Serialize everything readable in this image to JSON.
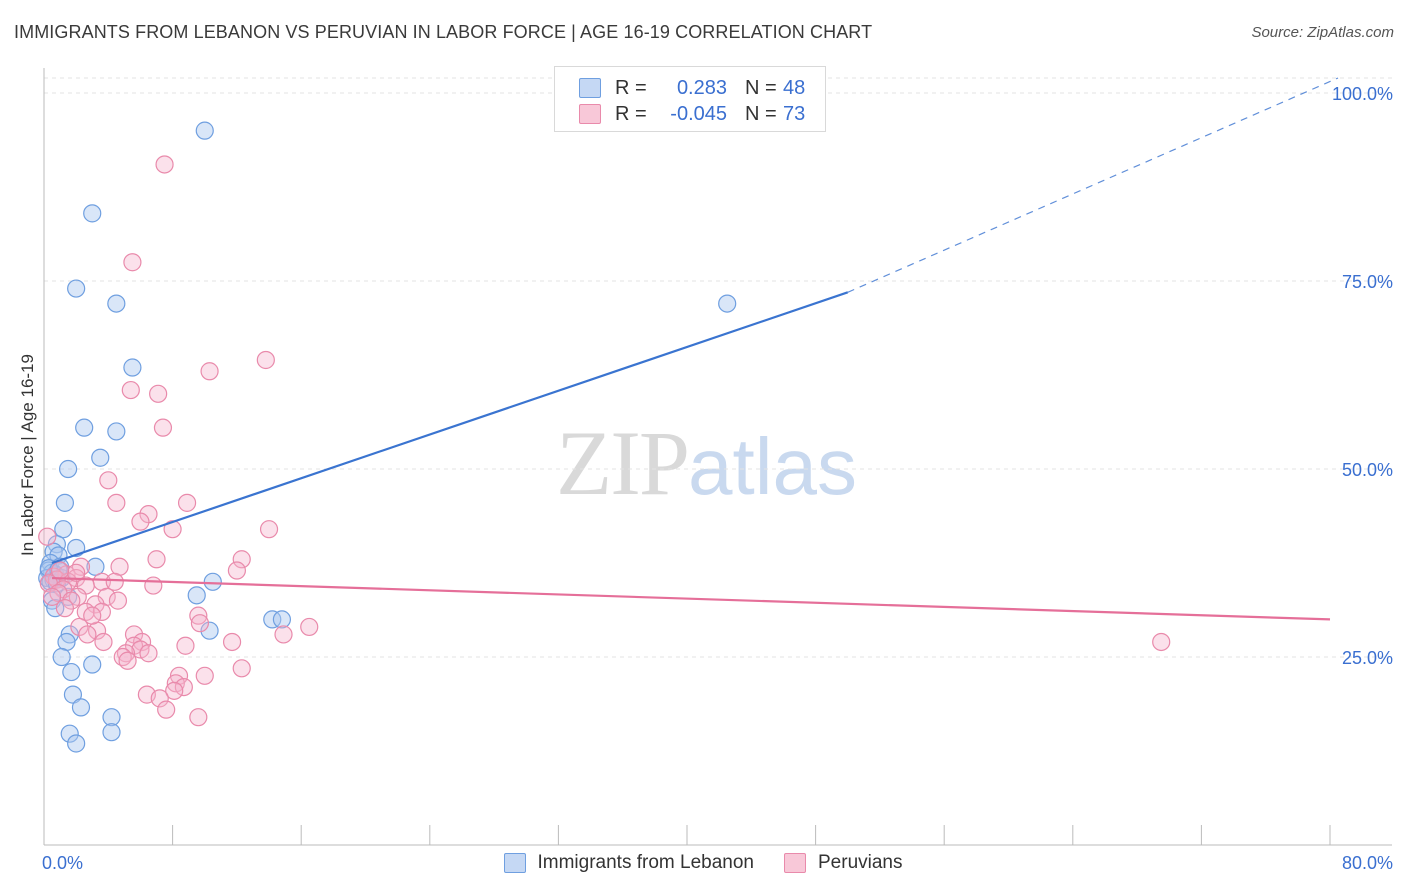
{
  "header": {
    "title": "IMMIGRANTS FROM LEBANON VS PERUVIAN IN LABOR FORCE | AGE 16-19 CORRELATION CHART",
    "source": "Source: ZipAtlas.com"
  },
  "watermark": {
    "zip": "ZIP",
    "atlas": "atlas"
  },
  "legend": {
    "rows": [
      {
        "r_label": "R =",
        "r_value": "0.283",
        "n_label": "N =",
        "n_value": "48",
        "color": "#6f9fe0",
        "fill": "#c5d8f4"
      },
      {
        "r_label": "R =",
        "r_value": "-0.045",
        "n_label": "N =",
        "n_value": "73",
        "color": "#e98aab",
        "fill": "#f8c8d8"
      }
    ]
  },
  "bottom_legend": {
    "items": [
      {
        "label": "Immigrants from Lebanon",
        "color": "#6f9fe0",
        "fill": "#c5d8f4"
      },
      {
        "label": "Peruvians",
        "color": "#e98aab",
        "fill": "#f8c8d8"
      }
    ]
  },
  "chart_data": {
    "type": "scatter",
    "title": "IMMIGRANTS FROM LEBANON VS PERUVIAN IN LABOR FORCE | AGE 16-19 CORRELATION CHART",
    "xlabel": "",
    "ylabel": "In Labor Force | Age 16-19",
    "xlim": [
      0,
      80
    ],
    "ylim": [
      0,
      102
    ],
    "x_tick_labels": [
      "0.0%",
      "80.0%"
    ],
    "y_ticks": [
      25,
      50,
      75,
      100
    ],
    "y_tick_labels": [
      "25.0%",
      "50.0%",
      "75.0%",
      "100.0%"
    ],
    "grid": true,
    "colors": {
      "lebanon": "#3a74d0",
      "peruvian": "#e56f99",
      "ytick": "#3a6fd0"
    },
    "series": [
      {
        "name": "Immigrants from Lebanon",
        "key": "lebanon",
        "points": [
          [
            10,
            95
          ],
          [
            3,
            84
          ],
          [
            2,
            74
          ],
          [
            4.5,
            72
          ],
          [
            42.5,
            72
          ],
          [
            5.5,
            63.5
          ],
          [
            2.5,
            55.5
          ],
          [
            4.5,
            55
          ],
          [
            3.5,
            51.5
          ],
          [
            1.5,
            50
          ],
          [
            1.3,
            45.5
          ],
          [
            1.2,
            42
          ],
          [
            0.8,
            40
          ],
          [
            2,
            39.5
          ],
          [
            0.6,
            39
          ],
          [
            0.9,
            38.5
          ],
          [
            0.4,
            37.5
          ],
          [
            1,
            37
          ],
          [
            3.2,
            37
          ],
          [
            0.3,
            36.5
          ],
          [
            0.5,
            36.2
          ],
          [
            0.7,
            36
          ],
          [
            0.2,
            35.5
          ],
          [
            1.1,
            35.5
          ],
          [
            0.6,
            35.2
          ],
          [
            0.4,
            35
          ],
          [
            0.8,
            34.8
          ],
          [
            10.5,
            35
          ],
          [
            1.5,
            33
          ],
          [
            9.5,
            33.2
          ],
          [
            0.5,
            32.5
          ],
          [
            0.7,
            31.5
          ],
          [
            14.2,
            30
          ],
          [
            14.8,
            30
          ],
          [
            10.3,
            28.5
          ],
          [
            1.6,
            28
          ],
          [
            1.4,
            27
          ],
          [
            1.1,
            25
          ],
          [
            3,
            24
          ],
          [
            1.7,
            23
          ],
          [
            1.8,
            20
          ],
          [
            2.3,
            18.3
          ],
          [
            4.2,
            17
          ],
          [
            4.2,
            15
          ],
          [
            1.6,
            14.8
          ],
          [
            2,
            13.5
          ],
          [
            0.3,
            36.8
          ],
          [
            0.9,
            36.6
          ]
        ],
        "trend": {
          "x": [
            0.5,
            50
          ],
          "y": [
            37.5,
            73.5
          ],
          "dashed_to": [
            80.5,
            102
          ]
        }
      },
      {
        "name": "Peruvians",
        "key": "peruvian",
        "points": [
          [
            7.5,
            90.5
          ],
          [
            5.5,
            77.5
          ],
          [
            13.8,
            64.5
          ],
          [
            10.3,
            63
          ],
          [
            5.4,
            60.5
          ],
          [
            7.1,
            60
          ],
          [
            7.4,
            55.5
          ],
          [
            4,
            48.5
          ],
          [
            4.5,
            45.5
          ],
          [
            8.9,
            45.5
          ],
          [
            6.5,
            44
          ],
          [
            6,
            43
          ],
          [
            8,
            42
          ],
          [
            14,
            42
          ],
          [
            0.2,
            41
          ],
          [
            4.7,
            37
          ],
          [
            7,
            38
          ],
          [
            12.3,
            38
          ],
          [
            2.3,
            37
          ],
          [
            12,
            36.5
          ],
          [
            1.4,
            36
          ],
          [
            0.6,
            35.7
          ],
          [
            2,
            35.5
          ],
          [
            0.8,
            35.3
          ],
          [
            1.5,
            35
          ],
          [
            3.6,
            35
          ],
          [
            0.3,
            34.8
          ],
          [
            2.6,
            34.5
          ],
          [
            4.4,
            35
          ],
          [
            6.8,
            34.5
          ],
          [
            1.2,
            34
          ],
          [
            0.9,
            33.5
          ],
          [
            2.1,
            33
          ],
          [
            3.9,
            33
          ],
          [
            1.7,
            32.5
          ],
          [
            3.2,
            32
          ],
          [
            4.6,
            32.5
          ],
          [
            1.3,
            31.5
          ],
          [
            2.6,
            31
          ],
          [
            3.6,
            31
          ],
          [
            9.6,
            30.5
          ],
          [
            9.7,
            29.5
          ],
          [
            16.5,
            29
          ],
          [
            2.2,
            29
          ],
          [
            3.3,
            28.5
          ],
          [
            5.6,
            28
          ],
          [
            14.9,
            28
          ],
          [
            2.7,
            28
          ],
          [
            3.7,
            27
          ],
          [
            6.1,
            27
          ],
          [
            5.6,
            26.5
          ],
          [
            8.8,
            26.5
          ],
          [
            11.7,
            27
          ],
          [
            6,
            26
          ],
          [
            5.1,
            25.5
          ],
          [
            6.5,
            25.5
          ],
          [
            4.9,
            25
          ],
          [
            5.2,
            24.5
          ],
          [
            12.3,
            23.5
          ],
          [
            8.4,
            22.5
          ],
          [
            10,
            22.5
          ],
          [
            8.2,
            21.5
          ],
          [
            8.7,
            21
          ],
          [
            8.1,
            20.5
          ],
          [
            6.4,
            20
          ],
          [
            7.2,
            19.5
          ],
          [
            7.6,
            18
          ],
          [
            9.6,
            17
          ],
          [
            69.5,
            27
          ],
          [
            2,
            36.2
          ],
          [
            1,
            36.5
          ],
          [
            0.5,
            33
          ],
          [
            3,
            30.5
          ]
        ],
        "trend": {
          "x": [
            0.5,
            80
          ],
          "y": [
            35.5,
            30
          ]
        }
      }
    ]
  }
}
